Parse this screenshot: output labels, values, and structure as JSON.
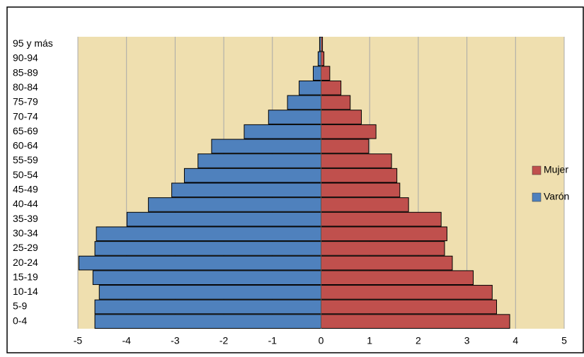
{
  "chart_data": {
    "type": "pyramid",
    "categories": [
      "0-4",
      "5-9",
      "10-14",
      "15-19",
      "20-24",
      "25-29",
      "30-34",
      "35-39",
      "40-44",
      "45-49",
      "50-54",
      "55-59",
      "60-64",
      "65-69",
      "70-74",
      "75-79",
      "80-84",
      "85-89",
      "90-94",
      "95 y más"
    ],
    "series": [
      {
        "name": "Mujer",
        "color": "#c0504d",
        "values": [
          3.88,
          3.61,
          3.52,
          3.13,
          2.7,
          2.54,
          2.59,
          2.47,
          1.8,
          1.62,
          1.56,
          1.45,
          0.98,
          1.13,
          0.83,
          0.6,
          0.41,
          0.18,
          0.06,
          0.03
        ]
      },
      {
        "name": "Varón",
        "color": "#4f81bd",
        "values": [
          -4.65,
          -4.65,
          -4.56,
          -4.69,
          -4.98,
          -4.65,
          -4.62,
          -3.99,
          -3.55,
          -3.07,
          -2.81,
          -2.53,
          -2.25,
          -1.58,
          -1.08,
          -0.69,
          -0.45,
          -0.16,
          -0.06,
          -0.03
        ]
      }
    ],
    "xlim": [
      -5,
      5
    ],
    "xticks": [
      -5,
      -4,
      -3,
      -2,
      -1,
      0,
      1,
      2,
      3,
      4,
      5
    ],
    "grid": true,
    "legend": "right"
  }
}
